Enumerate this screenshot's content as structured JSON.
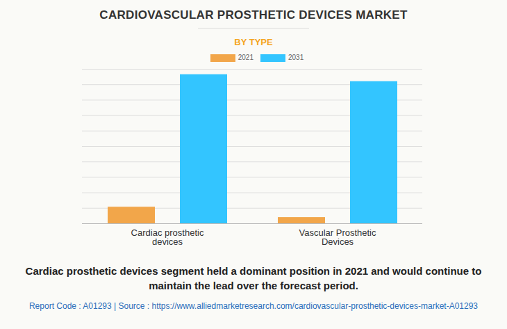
{
  "chart_data": {
    "type": "bar",
    "title": "CARDIOVASCULAR PROSTHETIC DEVICES MARKET",
    "subtitle": "BY TYPE",
    "categories": [
      "Cardiac prosthetic devices",
      "Vascular Prosthetic Devices"
    ],
    "series": [
      {
        "name": "2021",
        "color": "#f2a64a",
        "values": [
          1.07,
          0.4
        ]
      },
      {
        "name": "2031",
        "color": "#33c5ff",
        "values": [
          9.65,
          9.2
        ]
      }
    ],
    "ylim": [
      0,
      10
    ],
    "yticks": [
      0,
      1,
      2,
      3,
      4,
      5,
      6,
      7,
      8,
      9,
      10
    ],
    "grid": true,
    "tick_labels": "x",
    "legend": "top",
    "caption": "Cardiac prosthetic devices segment held a dominant position in 2021 and would continue to maintain the lead over the forecast period.",
    "footer": "Report Code : A01293  |  Source : https://www.alliedmarketresearch.com/cardiovascular-prosthetic-devices-market-A01293"
  }
}
